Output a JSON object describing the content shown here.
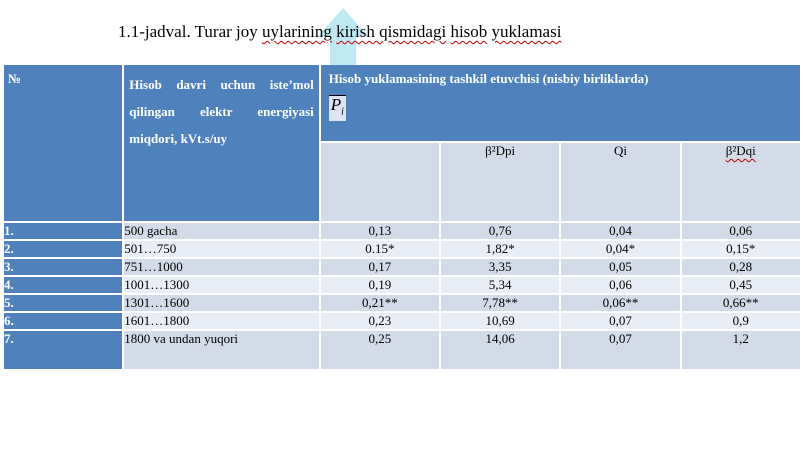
{
  "title": {
    "prefix": "1.1-jadval. Turar joy ",
    "w1": "uylarining",
    "mid": " ",
    "w2": "kirish qismidagi",
    "sp": " ",
    "w3": "hisob",
    "sp2": " ",
    "w4": "yuklamasi"
  },
  "table": {
    "header_num": "№",
    "header_desc": "Hisob davri uchun iste’mol qilingan elektr energiyasi miqdori, kVt.s/uy",
    "header_main": "Hisob yuklamasining tashkil etuvchisi (nisbiy birliklarda)",
    "p_symbol": "P",
    "p_sub": "i",
    "sub_headers": [
      "",
      "β²Dpi",
      "Qi",
      "β²Dqi"
    ],
    "rows": [
      {
        "num": "1.",
        "range": "500 gacha",
        "v": [
          "0,13",
          "0,76",
          "0,04",
          "0,06"
        ]
      },
      {
        "num": "2.",
        "range": "501…750",
        "v": [
          "0.15*",
          "1,82*",
          "0,04*",
          "0,15*"
        ]
      },
      {
        "num": "3.",
        "range": "751…1000",
        "v": [
          "0,17",
          "3,35",
          "0,05",
          "0,28"
        ]
      },
      {
        "num": "4.",
        "range": "1001…1300",
        "v": [
          "0,19",
          "5,34",
          "0,06",
          "0,45"
        ]
      },
      {
        "num": "5.",
        "range": "1301…1600",
        "v": [
          "0,21**",
          "7,78**",
          "0,06**",
          "0,66**"
        ]
      },
      {
        "num": "6.",
        "range": "1601…1800",
        "v": [
          "0,23",
          "10,69",
          "0,07",
          "0,9"
        ]
      },
      {
        "num": "7.",
        "range": "1800 va undan yuqori",
        "v": [
          "0,25",
          "14,06",
          "0,07",
          "1,2"
        ]
      }
    ]
  }
}
